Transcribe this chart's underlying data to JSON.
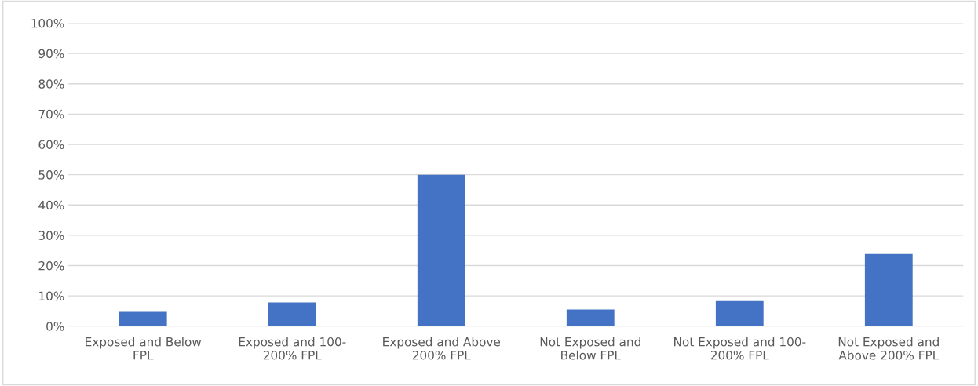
{
  "chart_data": {
    "type": "bar",
    "categories": [
      "Exposed and Below\nFPL",
      "Exposed and 100-\n200% FPL",
      "Exposed and Above\n200% FPL",
      "Not Exposed and\nBelow FPL",
      "Not Exposed and 100-\n200% FPL",
      "Not Exposed and\nAbove 200% FPL"
    ],
    "values": [
      4.7,
      7.8,
      50,
      5.5,
      8.3,
      23.8
    ],
    "color": "#4472c4",
    "ylim": [
      0,
      100
    ],
    "yticks": [
      {
        "value": 0,
        "label": "0%"
      },
      {
        "value": 10,
        "label": "10%"
      },
      {
        "value": 20,
        "label": "20%"
      },
      {
        "value": 30,
        "label": "30%"
      },
      {
        "value": 40,
        "label": "40%"
      },
      {
        "value": 50,
        "label": "50%"
      },
      {
        "value": 60,
        "label": "60%"
      },
      {
        "value": 70,
        "label": "70%"
      },
      {
        "value": 80,
        "label": "80%"
      },
      {
        "value": 90,
        "label": "90%"
      },
      {
        "value": 100,
        "label": "100%"
      }
    ],
    "grid": "y"
  }
}
